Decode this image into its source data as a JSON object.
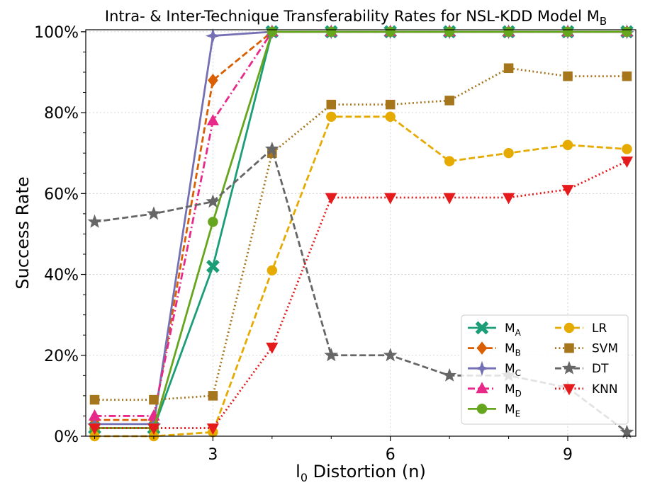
{
  "chart_data": {
    "type": "line",
    "title": "Intra- & Inter-Technique Transferability Rates for NSL-KDD Model M",
    "title_subscript": "B",
    "xlabel": "l",
    "xlabel_subscript": "0",
    "xlabel_suffix": " Distortion (n)",
    "ylabel": "Success Rate",
    "xlim": [
      0.85,
      10.15
    ],
    "ylim": [
      0,
      100.5
    ],
    "x_ticks": [
      3,
      6,
      9
    ],
    "y_ticks": [
      0,
      20,
      40,
      60,
      80,
      100
    ],
    "y_tick_labels": [
      "0%",
      "20%",
      "40%",
      "60%",
      "80%",
      "100%"
    ],
    "grid": true,
    "legend_position": "lower-right",
    "x": [
      1,
      2,
      3,
      4,
      5,
      6,
      7,
      8,
      9,
      10
    ],
    "series": [
      {
        "name": "M",
        "sub": "A",
        "color": "#1b9e77",
        "dash": "solid",
        "marker": "X",
        "values": [
          2,
          2,
          42,
          100,
          100,
          100,
          100,
          100,
          100,
          100
        ]
      },
      {
        "name": "M",
        "sub": "B",
        "color": "#d95f02",
        "dash": "dashed",
        "marker": "D",
        "values": [
          4,
          4,
          88,
          100,
          100,
          100,
          100,
          100,
          100,
          100
        ]
      },
      {
        "name": "M",
        "sub": "C",
        "color": "#7570b3",
        "dash": "solid",
        "marker": "star4",
        "values": [
          3,
          3,
          99,
          100,
          100,
          100,
          100,
          100,
          100,
          100
        ]
      },
      {
        "name": "M",
        "sub": "D",
        "color": "#e7298a",
        "dash": "dashdot",
        "marker": "triangle-up",
        "values": [
          5,
          5,
          78,
          100,
          100,
          100,
          100,
          100,
          100,
          100
        ]
      },
      {
        "name": "M",
        "sub": "E",
        "color": "#66a61e",
        "dash": "solid",
        "marker": "circle",
        "values": [
          2,
          2,
          53,
          100,
          100,
          100,
          100,
          100,
          100,
          100
        ]
      },
      {
        "name": "LR",
        "sub": "",
        "color": "#e6ab02",
        "dash": "dashed",
        "marker": "circle",
        "values": [
          0,
          0,
          1,
          41,
          79,
          79,
          68,
          70,
          72,
          71
        ]
      },
      {
        "name": "SVM",
        "sub": "",
        "color": "#a6761d",
        "dash": "dotted",
        "marker": "square",
        "values": [
          9,
          9,
          10,
          70,
          82,
          82,
          83,
          91,
          89,
          89
        ]
      },
      {
        "name": "DT",
        "sub": "",
        "color": "#666666",
        "dash": "dashed",
        "marker": "star",
        "values": [
          53,
          55,
          58,
          71,
          20,
          20,
          15,
          15,
          12,
          1
        ]
      },
      {
        "name": "KNN",
        "sub": "",
        "color": "#e41a1c",
        "dash": "dotted",
        "marker": "triangle-down",
        "values": [
          2,
          2,
          2,
          22,
          59,
          59,
          59,
          59,
          61,
          68
        ]
      }
    ]
  }
}
